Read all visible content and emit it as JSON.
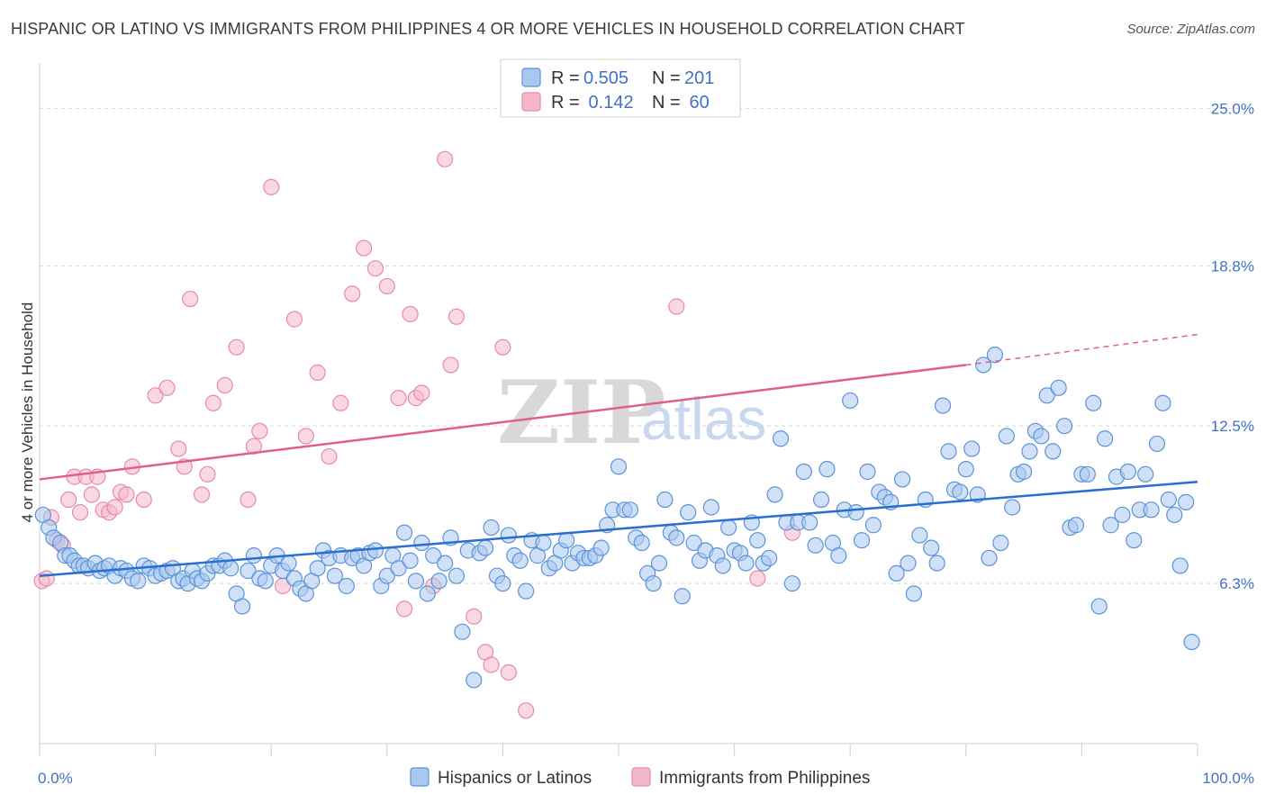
{
  "title": "HISPANIC OR LATINO VS IMMIGRANTS FROM PHILIPPINES 4 OR MORE VEHICLES IN HOUSEHOLD CORRELATION CHART",
  "source": "Source: ZipAtlas.com",
  "watermark": {
    "zip": "ZIP",
    "atlas": "atlas"
  },
  "legend": {
    "rows": [
      {
        "r_label": "R =",
        "r_value": "0.505",
        "n_label": "N =",
        "n_value": "201"
      },
      {
        "r_label": "R =",
        "r_value": " 0.142",
        "n_label": "N =",
        "n_value": " 60"
      }
    ]
  },
  "colors": {
    "blue_fill": "#a9c8f0",
    "blue_stroke": "#5b93d9",
    "blue_line": "#2a6fd0",
    "pink_fill": "#f5b8cb",
    "pink_stroke": "#e68aa8",
    "pink_line": "#e0608a",
    "grid": "#d8d8d8",
    "tick_label": "#3f72c8"
  },
  "chart_data": {
    "type": "scatter",
    "title": "HISPANIC OR LATINO VS IMMIGRANTS FROM PHILIPPINES 4 OR MORE VEHICLES IN HOUSEHOLD CORRELATION CHART",
    "xlabel": "",
    "ylabel": "4 or more Vehicles in Household",
    "xlim": [
      0,
      100
    ],
    "ylim": [
      0,
      26.5
    ],
    "x_tick_labels": [
      "0.0%",
      "100.0%"
    ],
    "y_ticks": [
      6.3,
      12.5,
      18.8,
      25.0
    ],
    "y_tick_labels": [
      "6.3%",
      "12.5%",
      "18.8%",
      "25.0%"
    ],
    "grid": true,
    "legend_position": "top-center",
    "series": [
      {
        "name": "Hispanics or Latinos",
        "r": 0.505,
        "n": 201,
        "trend": {
          "x": [
            0,
            100
          ],
          "y": [
            6.6,
            10.3
          ]
        },
        "points": [
          [
            0.3,
            9.0
          ],
          [
            0.8,
            8.5
          ],
          [
            1.2,
            8.1
          ],
          [
            1.8,
            7.9
          ],
          [
            2.2,
            7.4
          ],
          [
            2.6,
            7.4
          ],
          [
            3.0,
            7.2
          ],
          [
            3.4,
            7.0
          ],
          [
            3.8,
            7.0
          ],
          [
            4.2,
            6.9
          ],
          [
            4.8,
            7.1
          ],
          [
            5.2,
            6.8
          ],
          [
            5.6,
            6.9
          ],
          [
            6.0,
            7.0
          ],
          [
            6.5,
            6.6
          ],
          [
            7.0,
            6.9
          ],
          [
            7.5,
            6.8
          ],
          [
            8.0,
            6.5
          ],
          [
            8.5,
            6.4
          ],
          [
            9.0,
            7.0
          ],
          [
            9.5,
            6.9
          ],
          [
            10.0,
            6.6
          ],
          [
            10.5,
            6.7
          ],
          [
            11.0,
            6.8
          ],
          [
            11.5,
            6.9
          ],
          [
            12.0,
            6.4
          ],
          [
            12.4,
            6.5
          ],
          [
            12.8,
            6.3
          ],
          [
            13.2,
            6.8
          ],
          [
            13.6,
            6.5
          ],
          [
            14.0,
            6.4
          ],
          [
            14.5,
            6.7
          ],
          [
            15.0,
            7.0
          ],
          [
            15.5,
            7.0
          ],
          [
            16.0,
            7.2
          ],
          [
            16.5,
            6.9
          ],
          [
            17.0,
            5.9
          ],
          [
            17.5,
            5.4
          ],
          [
            18.0,
            6.8
          ],
          [
            18.5,
            7.4
          ],
          [
            19.0,
            6.5
          ],
          [
            19.5,
            6.4
          ],
          [
            20.0,
            7.0
          ],
          [
            20.5,
            7.4
          ],
          [
            21.0,
            6.8
          ],
          [
            21.5,
            7.1
          ],
          [
            22.0,
            6.5
          ],
          [
            22.5,
            6.1
          ],
          [
            23.0,
            5.9
          ],
          [
            23.5,
            6.4
          ],
          [
            24.0,
            6.9
          ],
          [
            24.5,
            7.6
          ],
          [
            25.0,
            7.3
          ],
          [
            25.5,
            6.6
          ],
          [
            26.0,
            7.4
          ],
          [
            26.5,
            6.2
          ],
          [
            27.0,
            7.3
          ],
          [
            27.5,
            7.4
          ],
          [
            28.0,
            7.0
          ],
          [
            28.5,
            7.5
          ],
          [
            29.0,
            7.6
          ],
          [
            29.5,
            6.2
          ],
          [
            30.0,
            6.6
          ],
          [
            30.5,
            7.4
          ],
          [
            31.0,
            6.9
          ],
          [
            31.5,
            8.3
          ],
          [
            32.0,
            7.2
          ],
          [
            32.5,
            6.4
          ],
          [
            33.0,
            7.9
          ],
          [
            33.5,
            5.9
          ],
          [
            34.0,
            7.4
          ],
          [
            34.5,
            6.4
          ],
          [
            35.0,
            7.1
          ],
          [
            35.5,
            8.1
          ],
          [
            36.0,
            6.6
          ],
          [
            36.5,
            4.4
          ],
          [
            37.0,
            7.6
          ],
          [
            37.5,
            2.5
          ],
          [
            38.0,
            7.5
          ],
          [
            38.5,
            7.7
          ],
          [
            39.0,
            8.5
          ],
          [
            39.5,
            6.6
          ],
          [
            40.0,
            6.3
          ],
          [
            40.5,
            8.2
          ],
          [
            41.0,
            7.4
          ],
          [
            41.5,
            7.2
          ],
          [
            42.0,
            6.0
          ],
          [
            42.5,
            8.0
          ],
          [
            43.0,
            7.4
          ],
          [
            43.5,
            7.9
          ],
          [
            44.0,
            6.9
          ],
          [
            44.5,
            7.1
          ],
          [
            45.0,
            7.6
          ],
          [
            45.5,
            8.0
          ],
          [
            46.0,
            7.1
          ],
          [
            46.5,
            7.5
          ],
          [
            47.0,
            7.3
          ],
          [
            47.5,
            7.3
          ],
          [
            48.0,
            7.4
          ],
          [
            48.5,
            7.7
          ],
          [
            49.0,
            8.6
          ],
          [
            49.5,
            9.2
          ],
          [
            50.0,
            10.9
          ],
          [
            50.5,
            9.2
          ],
          [
            51.0,
            9.2
          ],
          [
            51.5,
            8.1
          ],
          [
            52.0,
            7.9
          ],
          [
            52.5,
            6.7
          ],
          [
            53.0,
            6.3
          ],
          [
            53.5,
            7.1
          ],
          [
            54.0,
            9.6
          ],
          [
            54.5,
            8.3
          ],
          [
            55.0,
            8.1
          ],
          [
            55.5,
            5.8
          ],
          [
            56.0,
            9.1
          ],
          [
            56.5,
            7.9
          ],
          [
            57.0,
            7.2
          ],
          [
            57.5,
            7.6
          ],
          [
            58.0,
            9.3
          ],
          [
            58.5,
            7.4
          ],
          [
            59.0,
            7.0
          ],
          [
            59.5,
            8.5
          ],
          [
            60.0,
            7.6
          ],
          [
            60.5,
            7.5
          ],
          [
            61.0,
            7.1
          ],
          [
            61.5,
            8.7
          ],
          [
            62.0,
            8.0
          ],
          [
            62.5,
            7.1
          ],
          [
            63.0,
            7.3
          ],
          [
            63.5,
            9.8
          ],
          [
            64.0,
            12.0
          ],
          [
            64.5,
            8.7
          ],
          [
            65.0,
            6.3
          ],
          [
            65.5,
            8.7
          ],
          [
            66.0,
            10.7
          ],
          [
            66.5,
            8.7
          ],
          [
            67.0,
            7.8
          ],
          [
            67.5,
            9.6
          ],
          [
            68.0,
            10.8
          ],
          [
            68.5,
            7.9
          ],
          [
            69.0,
            7.4
          ],
          [
            69.5,
            9.2
          ],
          [
            70.0,
            13.5
          ],
          [
            70.5,
            9.1
          ],
          [
            71.0,
            8.0
          ],
          [
            71.5,
            10.7
          ],
          [
            72.0,
            8.6
          ],
          [
            72.5,
            9.9
          ],
          [
            73.0,
            9.7
          ],
          [
            73.5,
            9.5
          ],
          [
            74.0,
            6.7
          ],
          [
            74.5,
            10.4
          ],
          [
            75.0,
            7.1
          ],
          [
            75.5,
            5.9
          ],
          [
            76.0,
            8.2
          ],
          [
            76.5,
            9.6
          ],
          [
            77.0,
            7.7
          ],
          [
            77.5,
            7.1
          ],
          [
            78.0,
            13.3
          ],
          [
            78.5,
            11.5
          ],
          [
            79.0,
            10.0
          ],
          [
            79.5,
            9.9
          ],
          [
            80.0,
            10.8
          ],
          [
            80.5,
            11.6
          ],
          [
            81.0,
            9.8
          ],
          [
            81.5,
            14.9
          ],
          [
            82.0,
            7.3
          ],
          [
            82.5,
            15.3
          ],
          [
            83.0,
            7.9
          ],
          [
            83.5,
            12.1
          ],
          [
            84.0,
            9.3
          ],
          [
            84.5,
            10.6
          ],
          [
            85.0,
            10.7
          ],
          [
            85.5,
            11.5
          ],
          [
            86.0,
            12.3
          ],
          [
            86.5,
            12.1
          ],
          [
            87.0,
            13.7
          ],
          [
            87.5,
            11.5
          ],
          [
            88.0,
            14.0
          ],
          [
            88.5,
            12.5
          ],
          [
            89.0,
            8.5
          ],
          [
            89.5,
            8.6
          ],
          [
            90.0,
            10.6
          ],
          [
            90.5,
            10.6
          ],
          [
            91.0,
            13.4
          ],
          [
            91.5,
            5.4
          ],
          [
            92.0,
            12.0
          ],
          [
            92.5,
            8.6
          ],
          [
            93.0,
            10.5
          ],
          [
            93.5,
            9.0
          ],
          [
            94.0,
            10.7
          ],
          [
            94.5,
            8.0
          ],
          [
            95.0,
            9.2
          ],
          [
            95.5,
            10.6
          ],
          [
            96.0,
            9.2
          ],
          [
            96.5,
            11.8
          ],
          [
            97.0,
            13.4
          ],
          [
            97.5,
            9.6
          ],
          [
            98.0,
            9.0
          ],
          [
            98.5,
            7.0
          ],
          [
            99.0,
            9.5
          ],
          [
            99.5,
            4.0
          ]
        ]
      },
      {
        "name": "Immigrants from Philippines",
        "r": 0.142,
        "n": 60,
        "trend": {
          "x": [
            0,
            80
          ],
          "y": [
            10.4,
            14.9
          ],
          "dashed_to": [
            100,
            16.1
          ]
        },
        "points": [
          [
            0.2,
            6.4
          ],
          [
            0.6,
            6.5
          ],
          [
            1.0,
            8.9
          ],
          [
            1.5,
            8.0
          ],
          [
            2.0,
            7.8
          ],
          [
            2.5,
            9.6
          ],
          [
            3.0,
            10.5
          ],
          [
            3.5,
            9.1
          ],
          [
            4.0,
            10.5
          ],
          [
            4.5,
            9.8
          ],
          [
            5.0,
            10.5
          ],
          [
            5.5,
            9.2
          ],
          [
            6.0,
            9.1
          ],
          [
            6.5,
            9.3
          ],
          [
            7.0,
            9.9
          ],
          [
            7.5,
            9.8
          ],
          [
            8.0,
            10.9
          ],
          [
            9.0,
            9.6
          ],
          [
            10.0,
            13.7
          ],
          [
            11.0,
            14.0
          ],
          [
            12.0,
            11.6
          ],
          [
            12.5,
            10.9
          ],
          [
            13.0,
            17.5
          ],
          [
            14.0,
            9.8
          ],
          [
            14.5,
            10.6
          ],
          [
            15.0,
            13.4
          ],
          [
            16.0,
            14.1
          ],
          [
            17.0,
            15.6
          ],
          [
            18.0,
            9.6
          ],
          [
            18.5,
            11.7
          ],
          [
            19.0,
            12.3
          ],
          [
            20.0,
            21.9
          ],
          [
            21.0,
            6.2
          ],
          [
            22.0,
            16.7
          ],
          [
            23.0,
            12.1
          ],
          [
            24.0,
            14.6
          ],
          [
            25.0,
            11.3
          ],
          [
            26.0,
            13.4
          ],
          [
            27.0,
            17.7
          ],
          [
            28.0,
            19.5
          ],
          [
            29.0,
            18.7
          ],
          [
            30.0,
            18.0
          ],
          [
            31.0,
            13.6
          ],
          [
            31.5,
            5.3
          ],
          [
            32.0,
            16.9
          ],
          [
            32.5,
            13.6
          ],
          [
            33.0,
            13.8
          ],
          [
            34.0,
            6.2
          ],
          [
            35.0,
            23.0
          ],
          [
            35.5,
            14.9
          ],
          [
            36.0,
            16.8
          ],
          [
            37.5,
            5.0
          ],
          [
            38.5,
            3.6
          ],
          [
            39.0,
            3.1
          ],
          [
            40.0,
            15.6
          ],
          [
            40.5,
            2.8
          ],
          [
            42.0,
            1.3
          ],
          [
            55.0,
            17.2
          ],
          [
            62.0,
            6.5
          ],
          [
            65.0,
            8.3
          ]
        ]
      }
    ]
  },
  "bottom_legend": {
    "items": [
      {
        "label": "Hispanics or Latinos"
      },
      {
        "label": "Immigrants from Philippines"
      }
    ]
  },
  "axes": {
    "ylabel": "4 or more Vehicles in Household",
    "x_left": "0.0%",
    "x_right": "100.0%",
    "y_ticks": [
      "25.0%",
      "18.8%",
      "12.5%",
      "6.3%"
    ]
  }
}
